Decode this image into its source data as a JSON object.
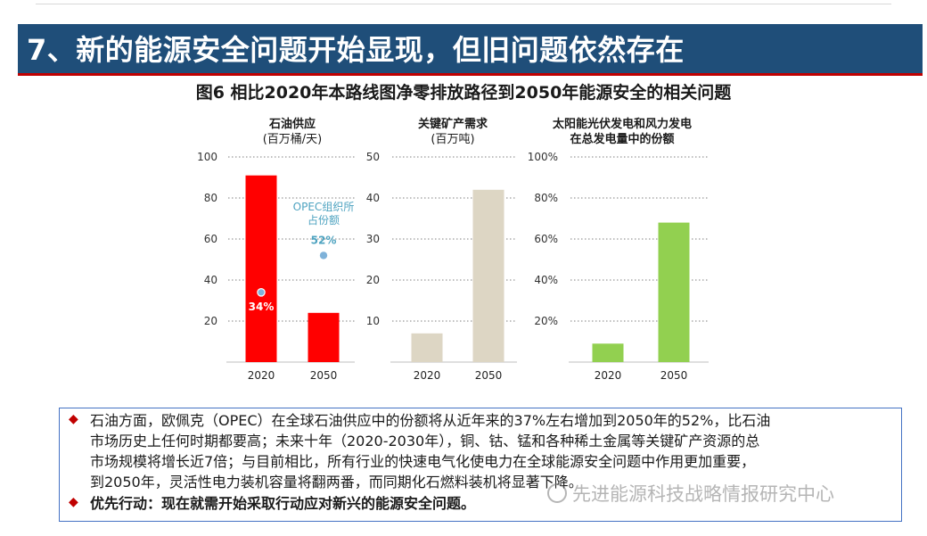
{
  "slide": {
    "header": "7、新的能源安全问题开始显现，但旧问题依然存在",
    "figure_title": "图6 相比2020年本路线图净零排放路径到2050年能源安全的相关问题"
  },
  "chart_data": [
    {
      "type": "bar",
      "title": "石油供应",
      "unit": "(百万桶/天)",
      "categories": [
        "2020",
        "2050"
      ],
      "values": [
        91,
        24
      ],
      "ylim": [
        0,
        100
      ],
      "yticks": [
        20,
        40,
        60,
        80,
        100
      ],
      "ytick_labels": [
        "20",
        "40",
        "60",
        "80",
        "100"
      ],
      "color": "#ff0000",
      "grid": "dotted",
      "points": [
        {
          "x_index": 0,
          "value": 34,
          "label": "34%",
          "color": "#7fb2d9",
          "label_color": "#ffffff"
        },
        {
          "x_index": 1,
          "value": 52,
          "label": "52%",
          "color": "#7fb2d9",
          "label_color": "#4ea3c0"
        }
      ],
      "annotation": {
        "lines": [
          "OPEC组织所",
          "占份额"
        ],
        "color": "#4ea3c0"
      }
    },
    {
      "type": "bar",
      "title": "关键矿产需求",
      "unit": "(百万吨)",
      "categories": [
        "2020",
        "2050"
      ],
      "values": [
        7,
        42
      ],
      "ylim": [
        0,
        50
      ],
      "yticks": [
        10,
        20,
        30,
        40,
        50
      ],
      "ytick_labels": [
        "10",
        "20",
        "30",
        "40",
        "50"
      ],
      "color": "#ddd6c4",
      "grid": "dotted"
    },
    {
      "type": "bar",
      "title": [
        "太阳能光伏发电和风力发电",
        "在总发电量中的份额"
      ],
      "unit": "",
      "categories": [
        "2020",
        "2050"
      ],
      "values": [
        9,
        68
      ],
      "ylim": [
        0,
        100
      ],
      "yticks": [
        20,
        40,
        60,
        80,
        100
      ],
      "ytick_labels": [
        "20%",
        "40%",
        "60%",
        "80%",
        "100%"
      ],
      "color": "#92d050",
      "grid": "dotted"
    }
  ],
  "notes": {
    "bullet_symbol": "◆",
    "para1_lines": [
      "石油方面，欧佩克（OPEC）在全球石油供应中的份额将从近年来的37%左右增加到2050年的52%，比石油",
      "市场历史上任何时期都要高；未来十年（2020-2030年），铜、钴、锰和各种稀土金属等关键矿产资源的总",
      "市场规模将增长近7倍；与目前相比，所有行业的快速电气化使电力在全球能源安全问题中作用更加重要，",
      "到2050年，灵活性电力装机容量将翻两番，而同期化石燃料装机将显著下降。"
    ],
    "para2": "优先行动：现在就需开始采取行动应对新兴的能源安全问题。"
  },
  "watermark": "先进能源科技战略情报研究中心"
}
